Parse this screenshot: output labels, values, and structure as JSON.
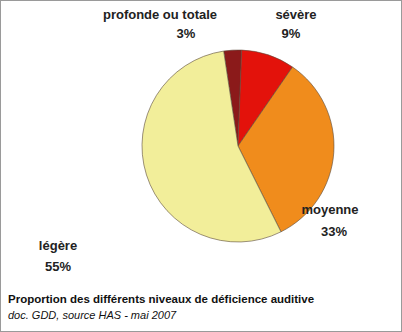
{
  "chart_data": {
    "type": "pie",
    "title": "Proportion des différents niveaux de déficience auditive",
    "subtitle": "doc. GDD, source HAS - mai 2007",
    "categories": [
      "profonde ou totale",
      "sévère",
      "moyenne",
      "légère"
    ],
    "values": [
      3,
      9,
      33,
      55
    ],
    "value_labels": [
      "3%",
      "9%",
      "33%",
      "55%"
    ],
    "colors": [
      "#8b1a1a",
      "#e3120b",
      "#f08c1c",
      "#f2ee9a"
    ],
    "data_labels": true
  }
}
